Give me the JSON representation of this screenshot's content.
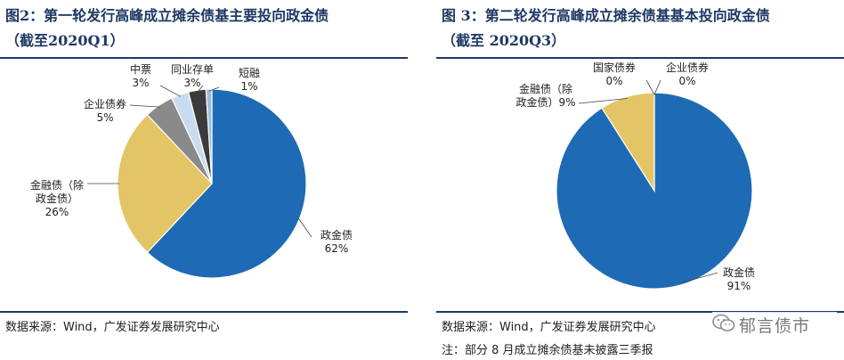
{
  "colors": {
    "title": "#1f3864",
    "govt": "#1f6ab4",
    "financial": "#e3c565",
    "corporate": "#8a8a8a",
    "mtn": "#c9dcef",
    "ncd": "#3a3a3a",
    "cp": "#9bbde0"
  },
  "left": {
    "title_line1": "图2：第一轮发行高峰成立摊余债基主要投向政金债",
    "title_line2": "（截至2020Q1）",
    "source": "数据来源：Wind，广发证券发展研究中心"
  },
  "right": {
    "title_line1": "图 3：第二轮发行高峰成立摊余债基基本投向政金债",
    "title_line2": "（截至 2020Q3）",
    "source": "数据来源：Wind，广发证券发展研究中心",
    "note": "注：部分 8 月成立摊余债基未披露三季报"
  },
  "watermark": {
    "text": "郁言债市",
    "icon": "wechat-icon"
  },
  "chart_data": [
    {
      "type": "pie",
      "title": "图2：第一轮发行高峰成立摊余债基主要投向政金债（截至2020Q1）",
      "slices": [
        {
          "label": "政金债",
          "value": 62,
          "pct": "62%"
        },
        {
          "label": "金融债（除政金债）",
          "value": 26,
          "pct": "26%"
        },
        {
          "label": "企业债券",
          "value": 5,
          "pct": "5%"
        },
        {
          "label": "中票",
          "value": 3,
          "pct": "3%"
        },
        {
          "label": "同业存单",
          "value": 3,
          "pct": "3%"
        },
        {
          "label": "短融",
          "value": 1,
          "pct": "1%"
        }
      ]
    },
    {
      "type": "pie",
      "title": "图 3：第二轮发行高峰成立摊余债基基本投向政金债（截至 2020Q3）",
      "slices": [
        {
          "label": "政金债",
          "value": 91,
          "pct": "91%"
        },
        {
          "label": "金融债（除政金债）",
          "value": 9,
          "pct": "9%"
        },
        {
          "label": "国家债券",
          "value": 0,
          "pct": "0%"
        },
        {
          "label": "企业债券",
          "value": 0,
          "pct": "0%"
        }
      ]
    }
  ]
}
